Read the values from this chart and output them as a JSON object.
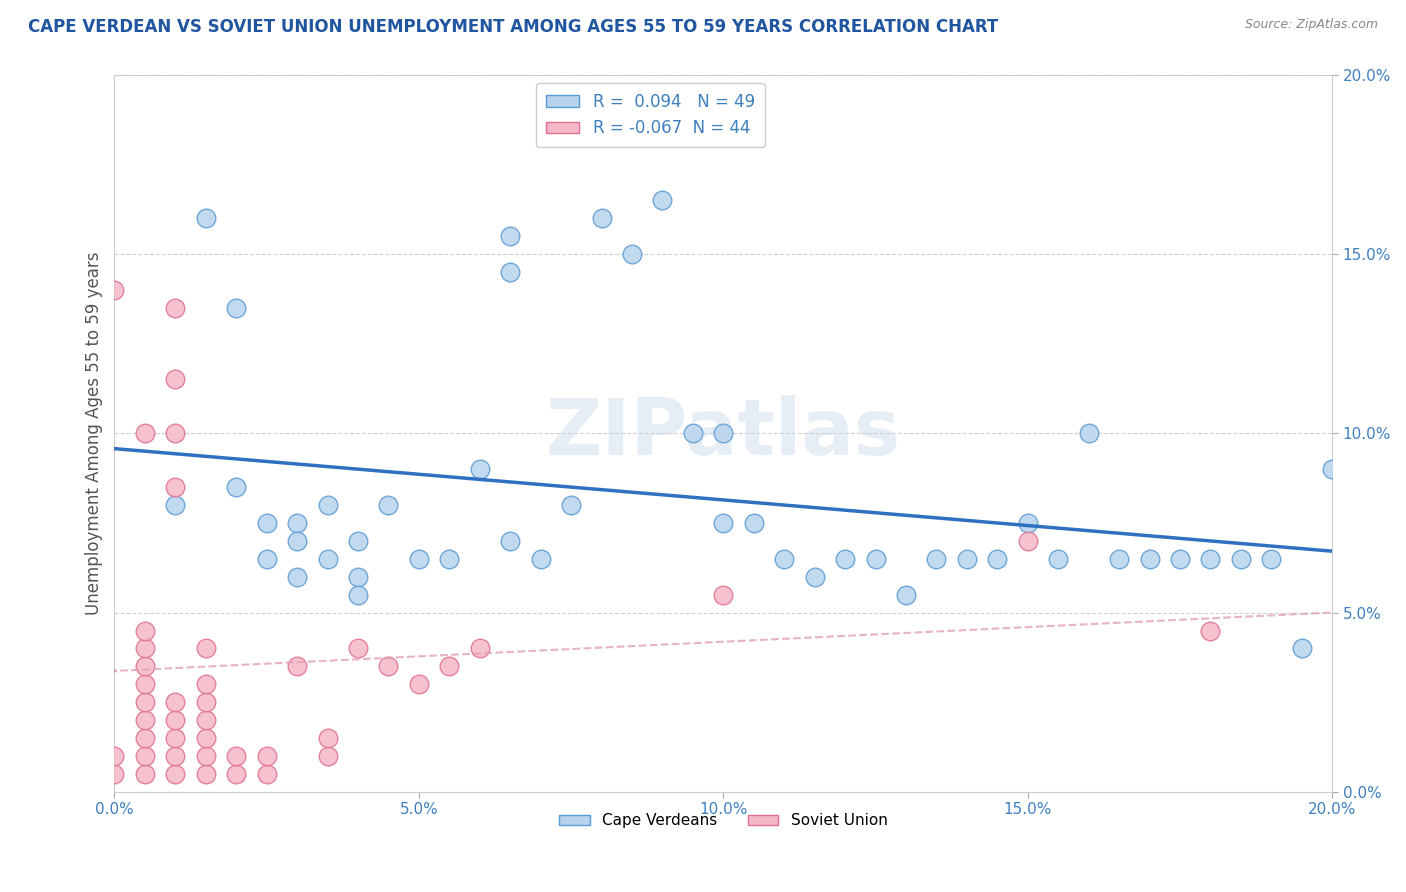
{
  "title": "CAPE VERDEAN VS SOVIET UNION UNEMPLOYMENT AMONG AGES 55 TO 59 YEARS CORRELATION CHART",
  "source": "Source: ZipAtlas.com",
  "ylabel": "Unemployment Among Ages 55 to 59 years",
  "xlim": [
    0.0,
    0.2
  ],
  "ylim": [
    0.0,
    0.2
  ],
  "blue_r": 0.094,
  "blue_n": 49,
  "pink_r": -0.067,
  "pink_n": 44,
  "blue_color": "#b8d4ed",
  "pink_color": "#f5b8c8",
  "blue_edge_color": "#5b9bd5",
  "pink_edge_color": "#e07090",
  "blue_line_color": "#3070c0",
  "pink_line_color": "#e090a0",
  "watermark": "ZIPatlas",
  "background_color": "#ffffff",
  "grid_color": "#d0d0d0",
  "blue_x": [
    0.01,
    0.015,
    0.02,
    0.025,
    0.025,
    0.03,
    0.03,
    0.035,
    0.035,
    0.04,
    0.04,
    0.045,
    0.05,
    0.055,
    0.06,
    0.065,
    0.065,
    0.07,
    0.075,
    0.08,
    0.085,
    0.09,
    0.095,
    0.1,
    0.105,
    0.11,
    0.115,
    0.12,
    0.125,
    0.13,
    0.135,
    0.14,
    0.145,
    0.15,
    0.155,
    0.16,
    0.165,
    0.17,
    0.175,
    0.18,
    0.185,
    0.19,
    0.195,
    0.2,
    0.02,
    0.03,
    0.04,
    0.065,
    0.1
  ],
  "blue_y": [
    0.08,
    0.16,
    0.135,
    0.065,
    0.075,
    0.06,
    0.075,
    0.065,
    0.08,
    0.07,
    0.06,
    0.08,
    0.065,
    0.065,
    0.09,
    0.155,
    0.145,
    0.065,
    0.08,
    0.16,
    0.15,
    0.165,
    0.1,
    0.1,
    0.075,
    0.065,
    0.06,
    0.065,
    0.065,
    0.055,
    0.065,
    0.065,
    0.065,
    0.075,
    0.065,
    0.1,
    0.065,
    0.065,
    0.065,
    0.065,
    0.065,
    0.065,
    0.04,
    0.09,
    0.085,
    0.07,
    0.055,
    0.07,
    0.075
  ],
  "pink_x": [
    0.0,
    0.0,
    0.0,
    0.005,
    0.005,
    0.005,
    0.005,
    0.005,
    0.005,
    0.005,
    0.005,
    0.005,
    0.01,
    0.01,
    0.01,
    0.01,
    0.01,
    0.01,
    0.01,
    0.01,
    0.015,
    0.015,
    0.015,
    0.015,
    0.015,
    0.015,
    0.015,
    0.02,
    0.02,
    0.025,
    0.025,
    0.03,
    0.035,
    0.035,
    0.04,
    0.045,
    0.05,
    0.055,
    0.06,
    0.1,
    0.15,
    0.18,
    0.005,
    0.01
  ],
  "pink_y": [
    0.005,
    0.01,
    0.14,
    0.005,
    0.01,
    0.015,
    0.02,
    0.025,
    0.03,
    0.035,
    0.04,
    0.1,
    0.005,
    0.01,
    0.015,
    0.02,
    0.025,
    0.085,
    0.1,
    0.135,
    0.005,
    0.01,
    0.015,
    0.02,
    0.025,
    0.03,
    0.04,
    0.005,
    0.01,
    0.005,
    0.01,
    0.035,
    0.01,
    0.015,
    0.04,
    0.035,
    0.03,
    0.035,
    0.04,
    0.055,
    0.07,
    0.045,
    0.045,
    0.115
  ]
}
